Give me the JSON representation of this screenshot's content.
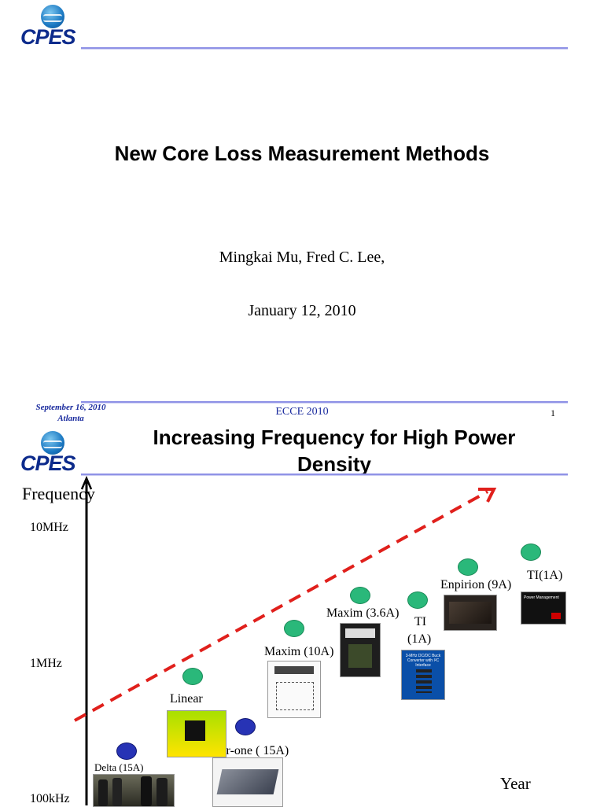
{
  "slide1": {
    "logo_text": "CPES",
    "title": "New Core Loss Measurement Methods",
    "authors": "Mingkai Mu, Fred C. Lee,",
    "date": "January 12, 2010",
    "footer": {
      "date_line1": "September 16, 2010",
      "date_line2": "Atlanta",
      "conference": "ECCE 2010",
      "page_number": "1"
    }
  },
  "slide2": {
    "logo_text": "CPES",
    "title_line1": "Increasing Frequency for High Power",
    "title_line2": "Density",
    "y_axis_label": "Frequency",
    "x_axis_label": "Year",
    "y_ticks": [
      "10MHz",
      "1MHz",
      "100kHz"
    ],
    "products": [
      {
        "label": "Delta (15A)",
        "color": "blue"
      },
      {
        "label": "Power-one ( 15A)",
        "color": "blue"
      },
      {
        "label": "Linear",
        "color": "green"
      },
      {
        "label": "Maxim (10A)",
        "color": "green"
      },
      {
        "label": "Maxim (3.6A)",
        "color": "green"
      },
      {
        "label_line1": "TI",
        "label_line2": "(1A)",
        "color": "green"
      },
      {
        "label": "Enpirion (9A)",
        "color": "green"
      },
      {
        "label": "TI(1A)",
        "color": "green"
      }
    ],
    "thumbnails": {
      "ti_power_title": "Power Management",
      "ti_dc_title": "3-MHz DC/DC Buck Converter with I²C Interface"
    },
    "colors": {
      "trend_arrow": "#e0201c",
      "green_dot": "#2ab87a",
      "blue_dot": "#2733b5",
      "rule": "#8f92e6",
      "footer_text": "#1a2b9e"
    }
  }
}
